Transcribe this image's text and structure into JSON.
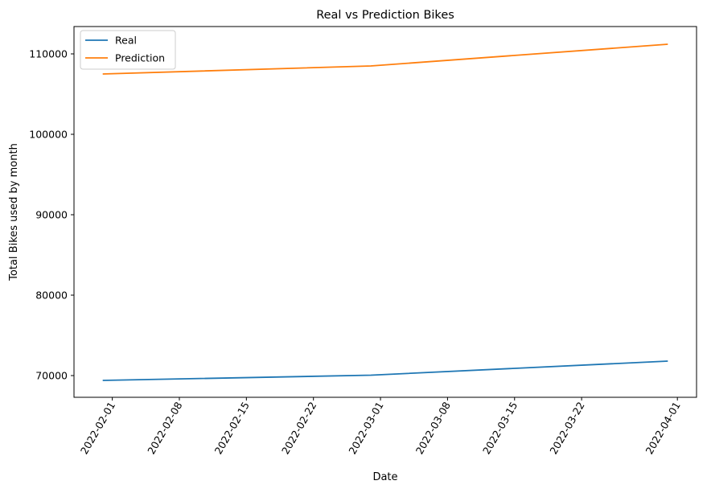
{
  "chart_data": {
    "type": "line",
    "title": "Real vs Prediction Bikes",
    "xlabel": "Date",
    "ylabel": "Total Bikes used by month",
    "x": [
      "2022-01-31",
      "2022-02-28",
      "2022-03-31"
    ],
    "series": [
      {
        "name": "Real",
        "color": "#1f77b4",
        "values": [
          69400,
          70050,
          71800
        ]
      },
      {
        "name": "Prediction",
        "color": "#ff7f0e",
        "values": [
          107500,
          108500,
          111200
        ]
      }
    ],
    "x_ticks": [
      "2022-02-01",
      "2022-02-08",
      "2022-02-15",
      "2022-02-22",
      "2022-03-01",
      "2022-03-08",
      "2022-03-15",
      "2022-03-22",
      "2022-04-01"
    ],
    "y_ticks": [
      70000,
      80000,
      90000,
      100000,
      110000
    ],
    "xlim": [
      "2022-01-28",
      "2022-04-03"
    ],
    "ylim": [
      67300,
      113400
    ],
    "grid": false,
    "legend_position": "upper-left"
  }
}
